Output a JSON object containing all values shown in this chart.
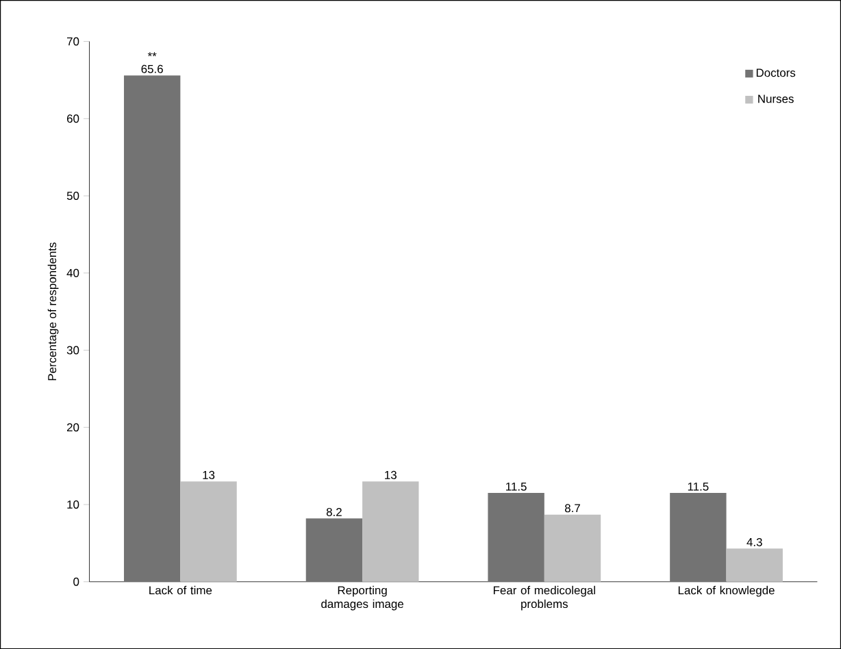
{
  "chart_data": {
    "type": "bar",
    "ylabel": "Percentage of respondents",
    "categories": [
      "Lack of time",
      "Reporting damages image",
      "Fear of medicolegal problems",
      "Lack of knowlegde"
    ],
    "series": [
      {
        "name": "Doctors",
        "color": "#737373",
        "values": [
          65.6,
          8.2,
          11.5,
          11.5
        ]
      },
      {
        "name": "Nurses",
        "color": "#c0c0c0",
        "values": [
          13,
          13,
          8.7,
          4.3
        ]
      }
    ],
    "ylim": [
      0,
      70
    ],
    "yticks": [
      0,
      10,
      20,
      30,
      40,
      50,
      60,
      70
    ],
    "data_labels": true,
    "legend": "top right",
    "annotations": [
      {
        "text": "**",
        "x": "Lack of time",
        "y": 65.6
      }
    ]
  }
}
